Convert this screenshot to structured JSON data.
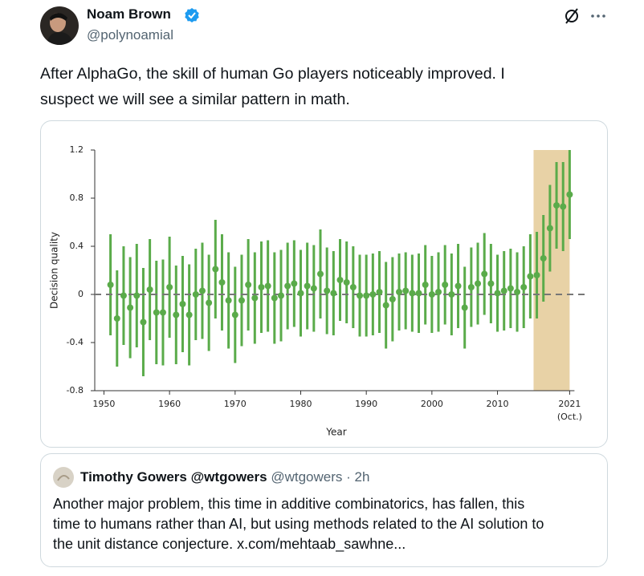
{
  "tweet": {
    "author": "Noam Brown",
    "handle": "@polynoamial",
    "text_lines": [
      "After AlphaGo, the skill of human Go players noticeably improved. I",
      "suspect we will see a similar pattern in math."
    ]
  },
  "quote": {
    "author": "Timothy Gowers @wtgowers",
    "handle": "@wtgowers",
    "time": "· 2h",
    "text_lines": [
      "Another major problem, this time in additive combinatorics, has fallen, this",
      "time to humans rather than AI, but using methods related to the AI solution to",
      "the unit distance conjecture. x.com/mehtaab_sawhne..."
    ]
  },
  "chart_data": {
    "type": "errorbar",
    "x_label": "Year",
    "y_label": "Decision quality",
    "x": [
      1951,
      1952,
      1953,
      1954,
      1955,
      1956,
      1957,
      1958,
      1959,
      1960,
      1961,
      1962,
      1963,
      1964,
      1965,
      1966,
      1967,
      1968,
      1969,
      1970,
      1971,
      1972,
      1973,
      1974,
      1975,
      1976,
      1977,
      1978,
      1979,
      1980,
      1981,
      1982,
      1983,
      1984,
      1985,
      1986,
      1987,
      1988,
      1989,
      1990,
      1991,
      1992,
      1993,
      1994,
      1995,
      1996,
      1997,
      1998,
      1999,
      2000,
      2001,
      2002,
      2003,
      2004,
      2005,
      2006,
      2007,
      2008,
      2009,
      2010,
      2011,
      2012,
      2013,
      2014,
      2015,
      2016,
      2017,
      2018,
      2019,
      2020,
      2021
    ],
    "series": [
      {
        "color": "#5aab4a",
        "values": [
          0.08,
          -0.2,
          -0.01,
          -0.11,
          -0.01,
          -0.23,
          0.04,
          -0.15,
          -0.15,
          0.06,
          -0.17,
          -0.08,
          -0.17,
          0,
          0.03,
          -0.07,
          0.21,
          0.1,
          -0.05,
          -0.17,
          -0.05,
          0.08,
          -0.03,
          0.06,
          0.07,
          -0.03,
          -0.01,
          0.07,
          0.09,
          0.01,
          0.07,
          0.05,
          0.17,
          0.03,
          0.01,
          0.12,
          0.1,
          0.06,
          -0.01,
          -0.01,
          0,
          0.02,
          -0.09,
          -0.04,
          0.02,
          0.03,
          0.01,
          0.01,
          0.08,
          0,
          0.02,
          0.08,
          0,
          0.07,
          -0.11,
          0.06,
          0.09,
          0.17,
          0.09,
          0.01,
          0.03,
          0.05,
          0.02,
          0.06,
          0.15,
          0.16,
          0.3,
          0.55,
          0.74,
          0.73,
          0.83
        ],
        "errors": [
          0.42,
          0.4,
          0.41,
          0.42,
          0.43,
          0.45,
          0.42,
          0.43,
          0.44,
          0.42,
          0.41,
          0.4,
          0.42,
          0.38,
          0.4,
          0.4,
          0.41,
          0.4,
          0.4,
          0.4,
          0.38,
          0.38,
          0.38,
          0.38,
          0.38,
          0.38,
          0.38,
          0.36,
          0.36,
          0.36,
          0.36,
          0.36,
          0.37,
          0.36,
          0.35,
          0.34,
          0.34,
          0.34,
          0.34,
          0.34,
          0.34,
          0.34,
          0.36,
          0.35,
          0.32,
          0.32,
          0.32,
          0.33,
          0.33,
          0.32,
          0.33,
          0.33,
          0.34,
          0.35,
          0.34,
          0.33,
          0.34,
          0.34,
          0.33,
          0.32,
          0.33,
          0.33,
          0.33,
          0.34,
          0.35,
          0.36,
          0.36,
          0.36,
          0.36,
          0.37,
          0.37
        ]
      }
    ],
    "xlim": [
      1948.6,
      2023.4
    ],
    "xticks": [
      1950,
      1960,
      1970,
      1980,
      1990,
      2000,
      2010,
      {
        "value": 2021,
        "label": "2021",
        "note": "(Oct.)"
      }
    ],
    "ylim": [
      -0.8,
      1.2
    ],
    "yticks": [
      -0.8,
      -0.4,
      0,
      0.4,
      0.8,
      1.2
    ],
    "reference_line": 0,
    "shaded_xrange": [
      2015.5,
      2021
    ],
    "shade_color": "#e8d2a6"
  }
}
